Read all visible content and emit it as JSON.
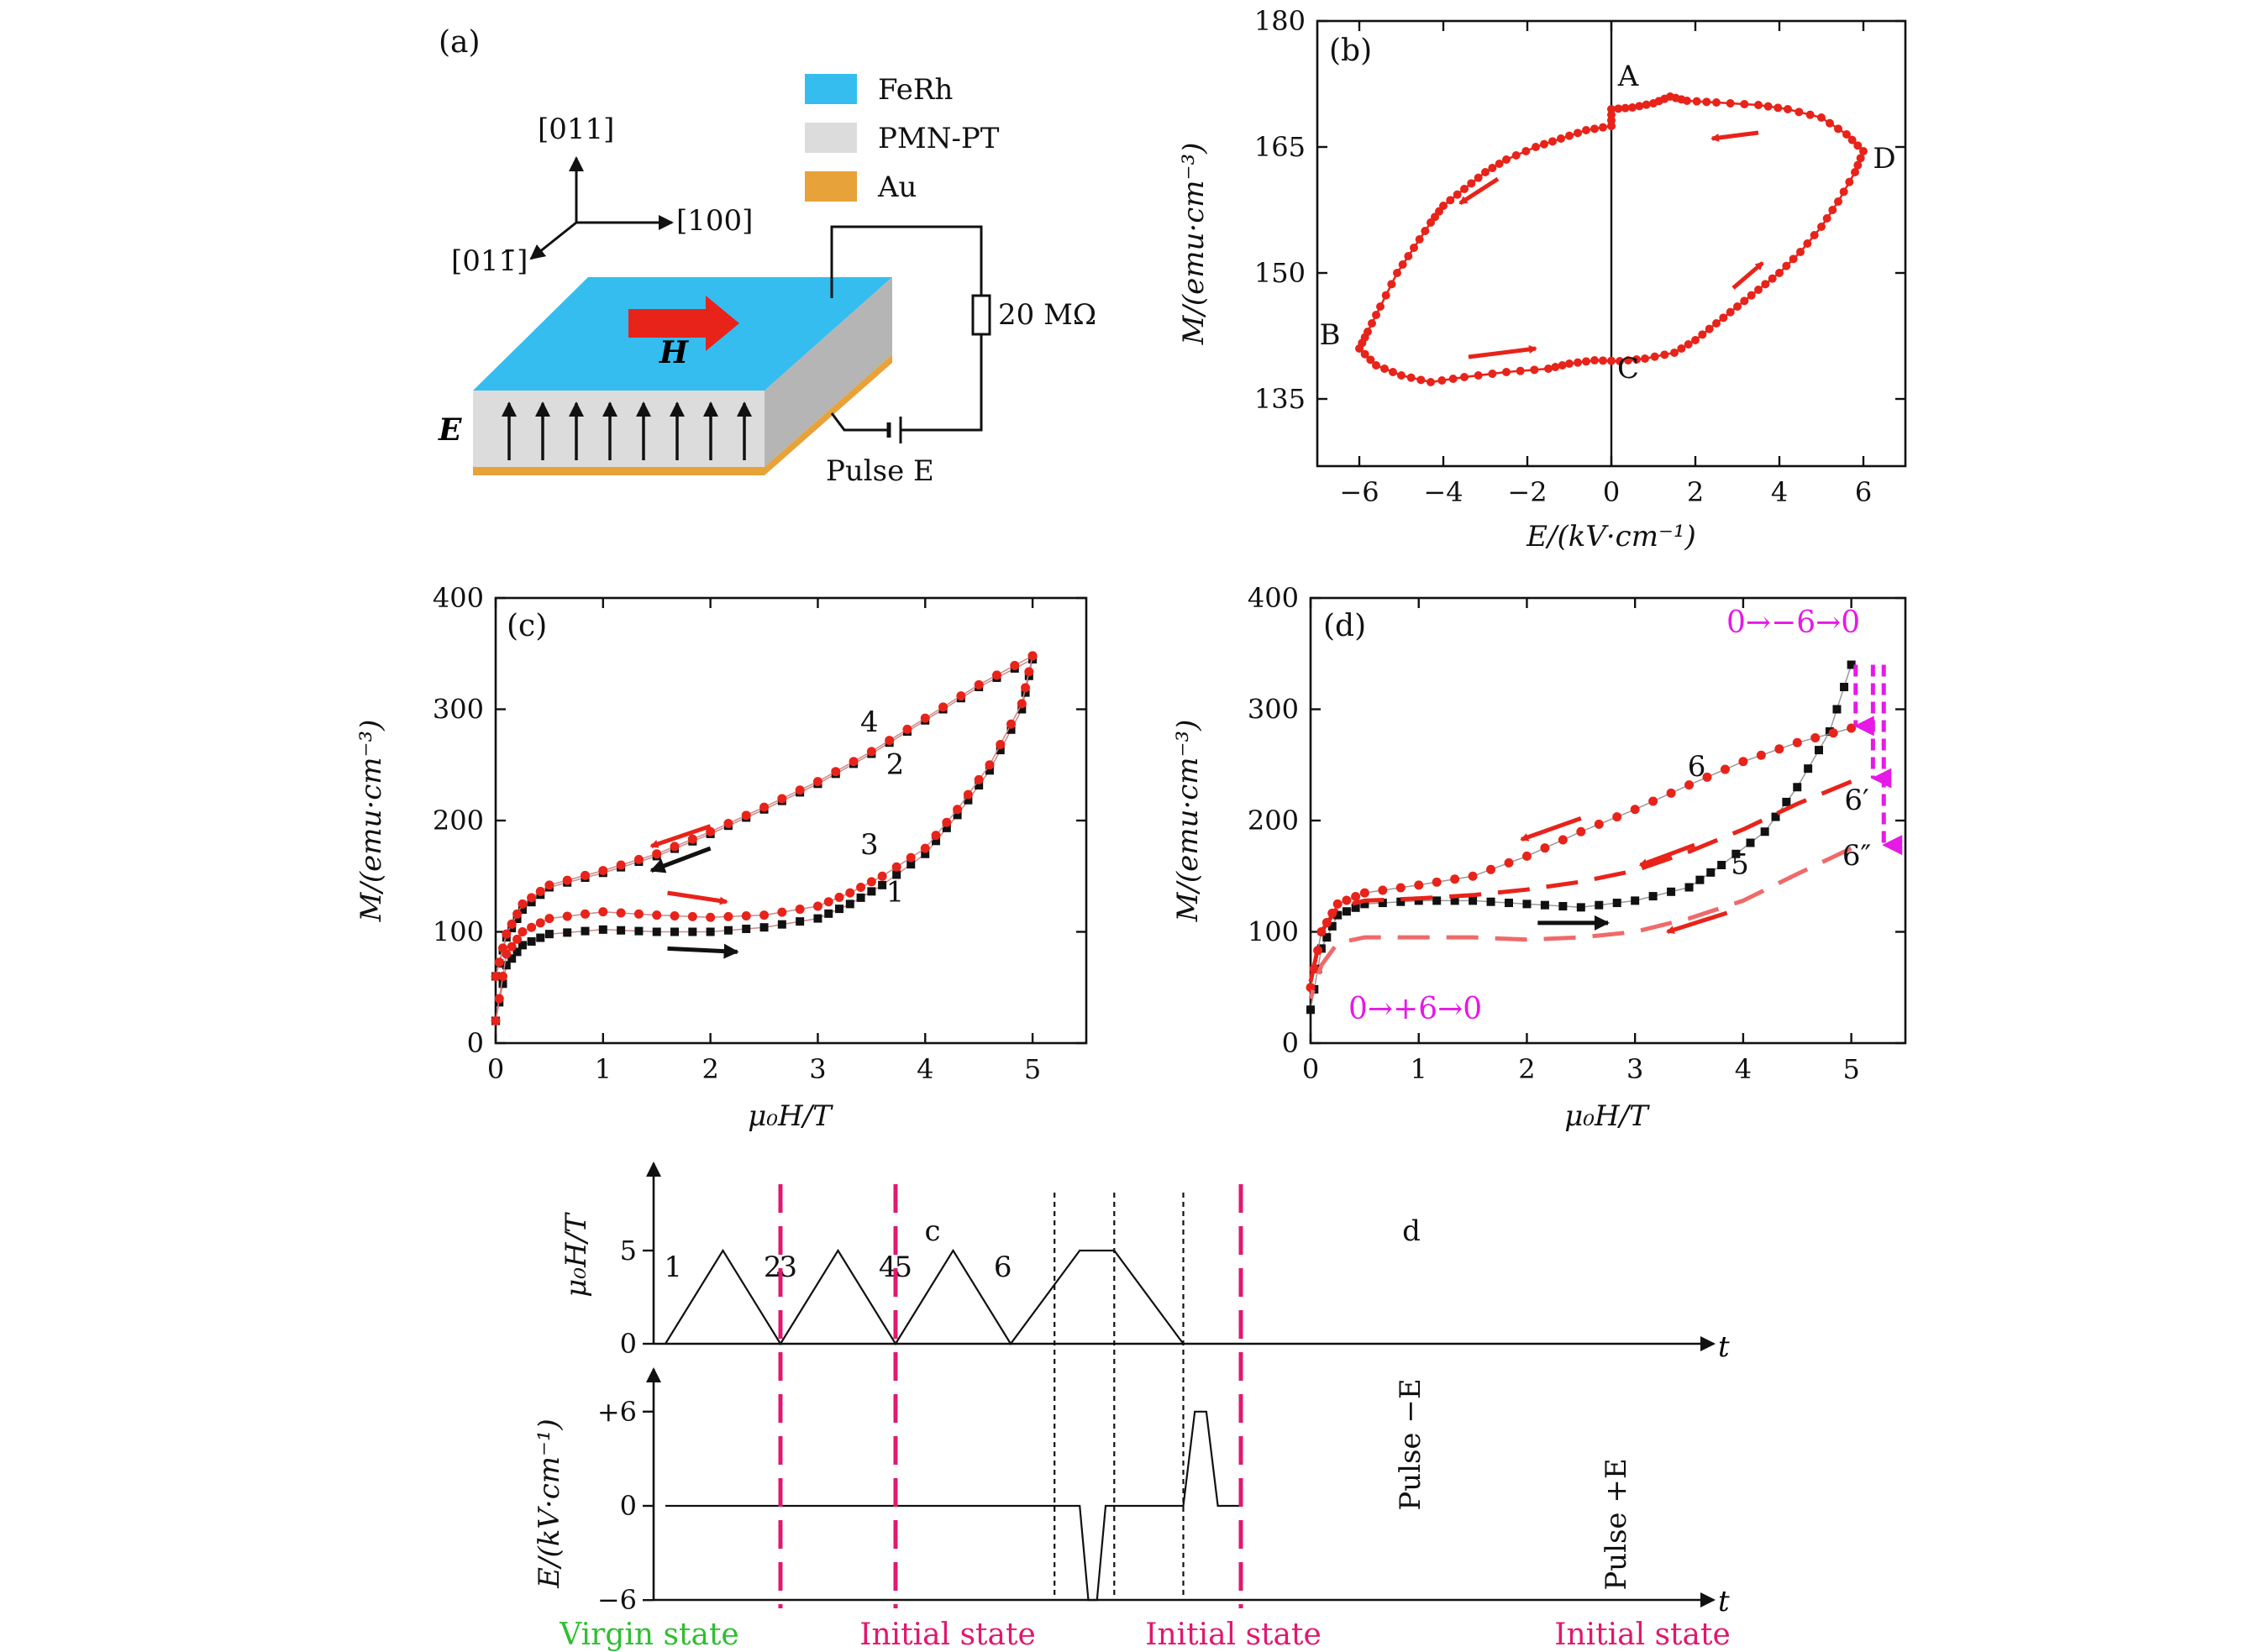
{
  "figure": {
    "panel_a": {
      "label": "(a)",
      "legend": [
        {
          "name": "FeRh",
          "color": "#35bdf0"
        },
        {
          "name": "PMN-PT",
          "color": "#dcdcdc"
        },
        {
          "name": "Au",
          "color": "#e8a23a"
        }
      ],
      "axes": {
        "up": "[011]",
        "right": "[100]",
        "left": "[011̄]"
      },
      "field_H": "H",
      "field_E": "E",
      "resistor": "20 MΩ",
      "pulse": "Pulse E",
      "colors": {
        "top": "#35bdf0",
        "side_front": "#dcdcdc",
        "side_right": "#b5b5b5",
        "au": "#e8a23a",
        "arrow_H": "#e8231a"
      }
    }
  },
  "chart_data": [
    {
      "panel": "(b)",
      "type": "line",
      "xlabel": "E/(kV·cm⁻¹)",
      "ylabel": "M/(emu·cm⁻³)",
      "xlim": [
        -7,
        7
      ],
      "ylim": [
        127,
        180
      ],
      "xticks": [
        -6,
        -4,
        -2,
        0,
        2,
        4,
        6
      ],
      "xtick_labels": [
        "−6",
        "−4",
        "−2",
        "0",
        "2",
        "4",
        "6"
      ],
      "yticks": [
        135,
        150,
        165,
        180
      ],
      "ytick_labels": [
        "135",
        "150",
        "165",
        "180"
      ],
      "color": "#e8231a",
      "loop": [
        [
          0,
          167.5
        ],
        [
          -0.6,
          167
        ],
        [
          -1.2,
          166
        ],
        [
          -1.8,
          165
        ],
        [
          -2.5,
          163.5
        ],
        [
          -3,
          162
        ],
        [
          -3.5,
          160
        ],
        [
          -4,
          158
        ],
        [
          -4.3,
          156
        ],
        [
          -4.7,
          153
        ],
        [
          -5.1,
          150
        ],
        [
          -5.5,
          146
        ],
        [
          -5.8,
          143
        ],
        [
          -6,
          141
        ],
        [
          -5.6,
          139
        ],
        [
          -5,
          137.8
        ],
        [
          -4.3,
          137
        ],
        [
          -3.5,
          137.6
        ],
        [
          -2.5,
          138.2
        ],
        [
          -1.5,
          138.6
        ],
        [
          -1,
          139.2
        ],
        [
          -0.4,
          139.6
        ],
        [
          0.2,
          139.5
        ],
        [
          0.8,
          139.8
        ],
        [
          1.5,
          140.5
        ],
        [
          2,
          142
        ],
        [
          2.5,
          144
        ],
        [
          3,
          146
        ],
        [
          3.5,
          148
        ],
        [
          4,
          150
        ],
        [
          4.5,
          152.5
        ],
        [
          5,
          155.5
        ],
        [
          5.4,
          158.5
        ],
        [
          5.8,
          162
        ],
        [
          6,
          164.5
        ],
        [
          5.6,
          166.5
        ],
        [
          5,
          168.5
        ],
        [
          4.2,
          169.5
        ],
        [
          3.5,
          170
        ],
        [
          2.5,
          170.3
        ],
        [
          1.8,
          170.5
        ],
        [
          1.4,
          171
        ],
        [
          1,
          170.2
        ],
        [
          0.5,
          169.7
        ],
        [
          0,
          169.5
        ]
      ],
      "point_labels": [
        {
          "text": "A",
          "x": 0.4,
          "y": 172.3
        },
        {
          "text": "B",
          "x": -6.7,
          "y": 141.5
        },
        {
          "text": "C",
          "x": 0.4,
          "y": 137.5
        },
        {
          "text": "D",
          "x": 6.5,
          "y": 162.5
        }
      ],
      "arrows": [
        {
          "x1": 3.5,
          "y1": 166.7,
          "x2": 2.4,
          "y2": 166.0
        },
        {
          "x1": -2.7,
          "y1": 161.2,
          "x2": -3.6,
          "y2": 158.3
        },
        {
          "x1": -3.4,
          "y1": 140.0,
          "x2": -1.8,
          "y2": 141.0
        },
        {
          "x1": 2.9,
          "y1": 148.2,
          "x2": 3.6,
          "y2": 151.2
        }
      ]
    },
    {
      "panel": "(c)",
      "type": "line",
      "xlabel": "μ₀H/T",
      "ylabel": "M/(emu·cm⁻³)",
      "xlim": [
        0,
        5.5
      ],
      "ylim": [
        0,
        400
      ],
      "xticks": [
        0,
        1,
        2,
        3,
        4,
        5
      ],
      "yticks": [
        0,
        100,
        200,
        300,
        400
      ],
      "series": [
        {
          "name": "1",
          "color": "#111111",
          "x": [
            0,
            0.1,
            0.25,
            0.5,
            1,
            1.5,
            2,
            2.5,
            3,
            3.3,
            3.6,
            4,
            4.3,
            4.6,
            4.9,
            5
          ],
          "y": [
            20,
            70,
            88,
            98,
            102,
            100,
            100,
            104,
            112,
            125,
            142,
            170,
            205,
            245,
            300,
            345
          ]
        },
        {
          "name": "2",
          "color": "#111111",
          "x": [
            5,
            4.5,
            4,
            3.5,
            3,
            2.5,
            2,
            1.5,
            1,
            0.5,
            0.25,
            0.1,
            0
          ],
          "y": [
            345,
            320,
            290,
            260,
            233,
            210,
            188,
            168,
            153,
            140,
            120,
            95,
            60
          ]
        },
        {
          "name": "3",
          "color": "#e8231a",
          "x": [
            0,
            0.1,
            0.25,
            0.5,
            1,
            1.5,
            2,
            2.5,
            3,
            3.3,
            3.6,
            4,
            4.3,
            4.6,
            4.9,
            5
          ],
          "y": [
            20,
            80,
            100,
            112,
            118,
            115,
            113,
            115,
            123,
            135,
            150,
            175,
            210,
            250,
            305,
            348
          ]
        },
        {
          "name": "4",
          "color": "#e8231a",
          "x": [
            5,
            4.5,
            4,
            3.5,
            3,
            2.5,
            2,
            1.5,
            1,
            0.5,
            0.25,
            0.1,
            0
          ],
          "y": [
            348,
            322,
            292,
            262,
            235,
            212,
            190,
            170,
            155,
            142,
            125,
            98,
            60
          ]
        }
      ],
      "series_labels": [
        {
          "text": "4",
          "x": 3.48,
          "y": 280,
          "color": "#e8231a"
        },
        {
          "text": "2",
          "x": 3.72,
          "y": 242,
          "color": "#111111"
        },
        {
          "text": "3",
          "x": 3.48,
          "y": 170,
          "color": "#e8231a"
        },
        {
          "text": "1",
          "x": 3.72,
          "y": 127,
          "color": "#111111"
        }
      ],
      "arrows": [
        {
          "x1": 2.0,
          "y1": 195,
          "x2": 1.45,
          "y2": 177,
          "color": "#e8231a"
        },
        {
          "x1": 2.0,
          "y1": 175,
          "x2": 1.45,
          "y2": 155,
          "color": "#111111"
        },
        {
          "x1": 1.6,
          "y1": 135,
          "x2": 2.15,
          "y2": 127,
          "color": "#e8231a"
        },
        {
          "x1": 1.6,
          "y1": 85,
          "x2": 2.25,
          "y2": 82,
          "color": "#111111"
        }
      ]
    },
    {
      "panel": "(d)",
      "type": "line",
      "xlabel": "μ₀H/T",
      "ylabel": "M/(emu·cm⁻³)",
      "xlim": [
        0,
        5.5
      ],
      "ylim": [
        0,
        400
      ],
      "xticks": [
        0,
        1,
        2,
        3,
        4,
        5
      ],
      "yticks": [
        0,
        100,
        200,
        300,
        400
      ],
      "annotation_top": "0→−6→0",
      "annotation_bottom": "0→+6→0",
      "annotation_color": "#e619e6",
      "series": [
        {
          "name": "5",
          "color": "#111111",
          "style": "square-markers",
          "x": [
            0,
            0.1,
            0.25,
            0.5,
            1,
            1.5,
            2,
            2.5,
            3,
            3.5,
            3.8,
            4.2,
            4.5,
            4.8,
            5
          ],
          "y": [
            30,
            85,
            115,
            125,
            128,
            128,
            125,
            122,
            128,
            140,
            160,
            190,
            230,
            280,
            340
          ]
        },
        {
          "name": "6",
          "color": "#e8231a",
          "style": "dots",
          "x": [
            5,
            4.5,
            4,
            3.5,
            3,
            2.5,
            2,
            1.5,
            1,
            0.5,
            0.25,
            0.1,
            0
          ],
          "y": [
            283,
            270,
            253,
            232,
            210,
            190,
            168,
            150,
            142,
            135,
            125,
            100,
            50
          ]
        },
        {
          "name": "6′",
          "color": "#e8231a",
          "style": "dashed",
          "x": [
            5,
            4.5,
            4,
            3.5,
            3,
            2.5,
            2,
            1.5,
            1,
            0.5,
            0.25,
            0.1,
            0
          ],
          "y": [
            235,
            215,
            192,
            172,
            155,
            145,
            138,
            133,
            130,
            128,
            122,
            100,
            55
          ]
        },
        {
          "name": "6″",
          "color": "#ef6a6a",
          "style": "dashed",
          "x": [
            5,
            4.5,
            4,
            3.5,
            3,
            2.5,
            2,
            1.5,
            1,
            0.5,
            0.25,
            0.1,
            0
          ],
          "y": [
            175,
            152,
            128,
            112,
            100,
            95,
            93,
            95,
            95,
            95,
            90,
            70,
            40
          ]
        }
      ],
      "series_labels": [
        {
          "text": "6",
          "x": 3.57,
          "y": 240
        },
        {
          "text": "6′",
          "x": 5.05,
          "y": 210
        },
        {
          "text": "5",
          "x": 3.97,
          "y": 152
        },
        {
          "text": "6″",
          "x": 5.05,
          "y": 160
        }
      ],
      "arrows": [
        {
          "x1": 2.5,
          "y1": 202,
          "x2": 1.95,
          "y2": 183,
          "color": "#e8231a"
        },
        {
          "x1": 3.55,
          "y1": 178,
          "x2": 3.05,
          "y2": 160,
          "color": "#e8231a"
        },
        {
          "x1": 3.85,
          "y1": 117,
          "x2": 3.3,
          "y2": 100,
          "color": "#e8231a"
        },
        {
          "x1": 2.1,
          "y1": 108,
          "x2": 2.75,
          "y2": 108,
          "color": "#111111"
        }
      ],
      "drops": [
        {
          "x": 5.04,
          "y1": 340,
          "y2": 285
        },
        {
          "x": 5.2,
          "y1": 340,
          "y2": 238
        },
        {
          "x": 5.3,
          "y1": 340,
          "y2": 178
        }
      ]
    },
    {
      "panel": "timing",
      "type": "line",
      "top": {
        "ylabel": "μ₀H/T",
        "yticks": [
          0,
          5
        ],
        "t": [
          0,
          1,
          2,
          3,
          4,
          5,
          6,
          7.2,
          7.8,
          9.0
        ],
        "y": [
          0,
          5,
          0,
          5,
          0,
          5,
          0,
          5,
          5,
          0
        ],
        "segment_labels": [
          "1",
          "2",
          "3",
          "4",
          "5",
          "6"
        ],
        "marker_c": "c",
        "marker_d": "d",
        "t_axis": "t"
      },
      "bottom": {
        "ylabel": "E/(kV·cm⁻¹)",
        "yticks": [
          -6,
          0,
          6
        ],
        "ytick_labels": [
          "−6",
          "0",
          "+6"
        ],
        "t": [
          0,
          7.2,
          7.35,
          7.5,
          7.65,
          7.8,
          9.0,
          9.2,
          9.4,
          9.6,
          10.0
        ],
        "y": [
          0,
          0,
          -6,
          -6,
          0,
          0,
          0,
          6,
          6,
          0,
          0
        ],
        "pulse_neg": "Pulse −E",
        "pulse_pos": "Pulse +E",
        "t_axis": "t"
      },
      "states": [
        {
          "text": "Virgin state",
          "color": "#2fbf2f"
        },
        {
          "text": "Initial state",
          "color": "#e0186f"
        },
        {
          "text": "Initial state",
          "color": "#e0186f"
        },
        {
          "text": "Initial state",
          "color": "#e0186f"
        }
      ]
    }
  ]
}
